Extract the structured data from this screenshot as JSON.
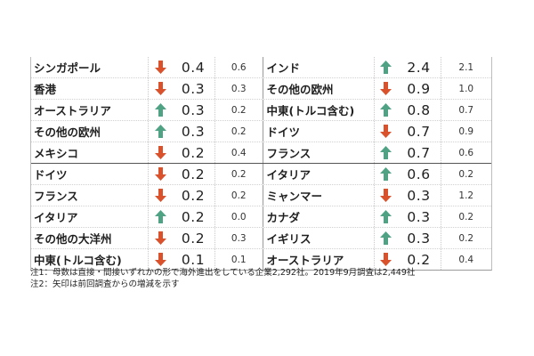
{
  "colors": {
    "up": "#4fa384",
    "down": "#d9522c"
  },
  "rows_top": [
    {
      "left": {
        "name": "シンガポール",
        "dir": "down",
        "value": "0.4",
        "prev": "0.6"
      },
      "right": {
        "name": "インド",
        "dir": "up",
        "value": "2.4",
        "prev": "2.1"
      }
    },
    {
      "left": {
        "name": "香港",
        "dir": "down",
        "value": "0.3",
        "prev": "0.3"
      },
      "right": {
        "name": "その他の欧州",
        "dir": "down",
        "value": "0.9",
        "prev": "1.0"
      }
    },
    {
      "left": {
        "name": "オーストラリア",
        "dir": "up",
        "value": "0.3",
        "prev": "0.2"
      },
      "right": {
        "name": "中東(トルコ含む)",
        "dir": "up",
        "value": "0.8",
        "prev": "0.7"
      }
    },
    {
      "left": {
        "name": "その他の欧州",
        "dir": "up",
        "value": "0.3",
        "prev": "0.2"
      },
      "right": {
        "name": "ドイツ",
        "dir": "down",
        "value": "0.7",
        "prev": "0.9"
      }
    },
    {
      "left": {
        "name": "メキシコ",
        "dir": "down",
        "value": "0.2",
        "prev": "0.4"
      },
      "right": {
        "name": "フランス",
        "dir": "up",
        "value": "0.7",
        "prev": "0.6"
      }
    }
  ],
  "rows_bottom": [
    {
      "left": {
        "name": "ドイツ",
        "dir": "down",
        "value": "0.2",
        "prev": "0.2"
      },
      "right": {
        "name": "イタリア",
        "dir": "up",
        "value": "0.6",
        "prev": "0.2"
      }
    },
    {
      "left": {
        "name": "フランス",
        "dir": "down",
        "value": "0.2",
        "prev": "0.2"
      },
      "right": {
        "name": "ミャンマー",
        "dir": "down",
        "value": "0.3",
        "prev": "1.2"
      }
    },
    {
      "left": {
        "name": "イタリア",
        "dir": "up",
        "value": "0.2",
        "prev": "0.0"
      },
      "right": {
        "name": "カナダ",
        "dir": "up",
        "value": "0.3",
        "prev": "0.2"
      }
    },
    {
      "left": {
        "name": "その他の大洋州",
        "dir": "down",
        "value": "0.2",
        "prev": "0.3"
      },
      "right": {
        "name": "イギリス",
        "dir": "up",
        "value": "0.3",
        "prev": "0.2"
      }
    },
    {
      "left": {
        "name": "中東(トルコ含む)",
        "dir": "down",
        "value": "0.1",
        "prev": "0.1"
      },
      "right": {
        "name": "オーストラリア",
        "dir": "down",
        "value": "0.2",
        "prev": "0.4"
      }
    }
  ],
  "notes": [
    "注1：母数は直接・間接いずれかの形で海外進出をしている企業2,292社。2019年9月調査は2,449社",
    "注2：矢印は前回調査からの増減を示す"
  ]
}
